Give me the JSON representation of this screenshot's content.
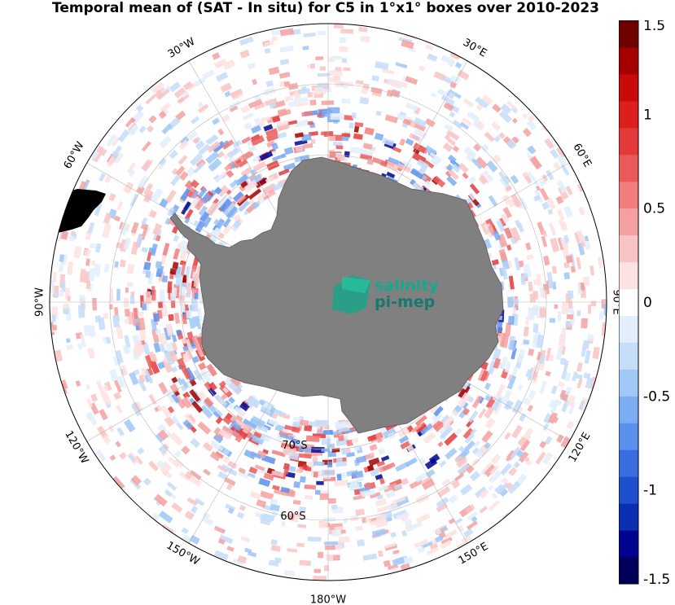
{
  "title": "Temporal mean of (SAT - In situ) for C5 in 1°x1° boxes over 2010-2023",
  "map": {
    "projection": "south-polar-stereographic",
    "longitude_labels": [
      {
        "text": "30°W"
      },
      {
        "text": "30°E"
      },
      {
        "text": "60°W"
      },
      {
        "text": "60°E"
      },
      {
        "text": "90°W"
      },
      {
        "text": "90°E"
      },
      {
        "text": "120°W"
      },
      {
        "text": "120°E"
      },
      {
        "text": "150°W"
      },
      {
        "text": "150°E"
      },
      {
        "text": "180°W"
      }
    ],
    "latitude_labels": [
      {
        "text": "70°S"
      },
      {
        "text": "60°S"
      }
    ],
    "land_color": "#808080"
  },
  "logo": {
    "line1": "salinity",
    "line2": "pi-mep"
  },
  "colorbar": {
    "min": -1.5,
    "max": 1.5,
    "ticks": [
      "1.5",
      "1",
      "0.5",
      "0",
      "-0.5",
      "-1",
      "-1.5"
    ],
    "colors": [
      "#00005a",
      "#00048e",
      "#0a2fb0",
      "#1e4fcc",
      "#3a6ee0",
      "#5a8fec",
      "#7cacf2",
      "#a0c8f6",
      "#c4ddf9",
      "#e2eefc",
      "#ffffff",
      "#fde2e2",
      "#f9c4c4",
      "#f5a0a0",
      "#f07c7c",
      "#ea5a5a",
      "#e43a3a",
      "#dc1e1e",
      "#c80a0a",
      "#a50000",
      "#6e0000"
    ]
  }
}
